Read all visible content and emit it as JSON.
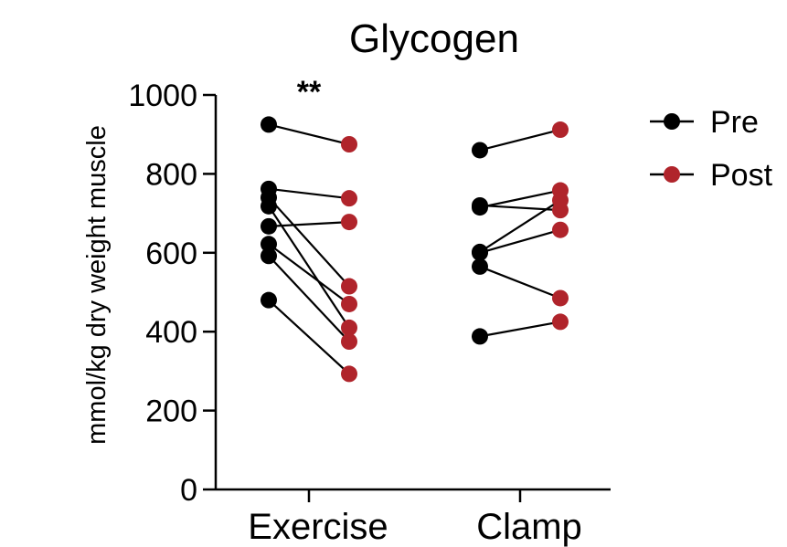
{
  "chart_data": {
    "type": "scatter",
    "title": "Glycogen",
    "ylabel": "mmol/kg dry weight muscle",
    "xlabel": "",
    "ylim": [
      0,
      1000
    ],
    "yticks": [
      0,
      200,
      400,
      600,
      800,
      1000
    ],
    "categories": [
      "Exercise",
      "Clamp"
    ],
    "legend": {
      "position": "top-right",
      "entries": [
        {
          "name": "Pre",
          "color": "#000000"
        },
        {
          "name": "Post",
          "color": "#b0242b"
        }
      ]
    },
    "annotations": [
      {
        "category": "Exercise",
        "text": "**"
      }
    ],
    "groups": [
      {
        "category": "Exercise",
        "pairs": [
          {
            "pre": 925,
            "post": 875
          },
          {
            "pre": 762,
            "post": 738
          },
          {
            "pre": 740,
            "post": 515
          },
          {
            "pre": 718,
            "post": 410
          },
          {
            "pre": 667,
            "post": 678
          },
          {
            "pre": 622,
            "post": 470
          },
          {
            "pre": 592,
            "post": 375
          },
          {
            "pre": 480,
            "post": 293
          }
        ]
      },
      {
        "category": "Clamp",
        "pairs": [
          {
            "pre": 860,
            "post": 912
          },
          {
            "pre": 720,
            "post": 708
          },
          {
            "pre": 715,
            "post": 758
          },
          {
            "pre": 602,
            "post": 733
          },
          {
            "pre": 600,
            "post": 658
          },
          {
            "pre": 565,
            "post": 485
          },
          {
            "pre": 388,
            "post": 425
          }
        ]
      }
    ]
  }
}
